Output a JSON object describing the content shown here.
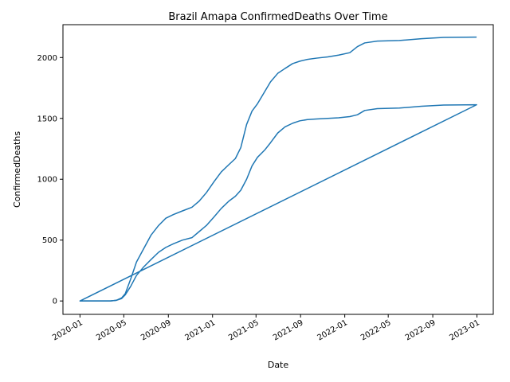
{
  "chart_data": {
    "type": "line",
    "title": "Brazil Amapa ConfirmedDeaths Over Time",
    "xlabel": "Date",
    "ylabel": "ConfirmedDeaths",
    "x_ticks": [
      "2020-01",
      "2020-05",
      "2020-09",
      "2021-01",
      "2021-05",
      "2021-09",
      "2022-01",
      "2022-05",
      "2022-09",
      "2023-01"
    ],
    "y_ticks": [
      0,
      500,
      1000,
      1500,
      2000
    ],
    "xlim": [
      "2019-11-15",
      "2023-02-15"
    ],
    "ylim": [
      -110,
      2270
    ],
    "grid": false,
    "legend": "none",
    "color": "#1f77b4",
    "series": [
      {
        "x": [
          "2020-01-01",
          "2020-03-25",
          "2020-04-10",
          "2020-04-25",
          "2020-05-05",
          "2020-05-20",
          "2020-06-05",
          "2020-06-25",
          "2020-07-15",
          "2020-08-05",
          "2020-08-25",
          "2020-09-15",
          "2020-10-10",
          "2020-11-05",
          "2020-11-25",
          "2020-12-15",
          "2021-01-05",
          "2021-01-25",
          "2021-02-15",
          "2021-03-05",
          "2021-03-20",
          "2021-04-05",
          "2021-04-20",
          "2021-05-05",
          "2021-05-25",
          "2021-06-10",
          "2021-06-30",
          "2021-07-20",
          "2021-08-10",
          "2021-08-30",
          "2021-09-20",
          "2021-10-15",
          "2021-11-15",
          "2021-12-15",
          "2022-01-15",
          "2022-02-05",
          "2022-02-25",
          "2022-04-01",
          "2022-06-01",
          "2022-08-01",
          "2022-10-01",
          "2022-12-31",
          "2020-01-01",
          "2022-12-31"
        ],
        "y": [
          0,
          0,
          5,
          20,
          50,
          120,
          210,
          280,
          340,
          400,
          440,
          470,
          500,
          520,
          570,
          620,
          690,
          760,
          820,
          860,
          910,
          1000,
          1110,
          1180,
          1240,
          1300,
          1380,
          1430,
          1460,
          1480,
          1490,
          1495,
          1500,
          1505,
          1515,
          1530,
          1565,
          1580,
          1585,
          1600,
          1610,
          1612,
          0,
          1612
        ]
      },
      {
        "x": [
          "2020-01-01",
          "2020-03-25",
          "2020-04-10",
          "2020-04-25",
          "2020-05-05",
          "2020-05-20",
          "2020-06-05",
          "2020-06-25",
          "2020-07-15",
          "2020-08-05",
          "2020-08-25",
          "2020-09-15",
          "2020-10-10",
          "2020-11-05",
          "2020-11-25",
          "2020-12-15",
          "2021-01-05",
          "2021-01-25",
          "2021-02-15",
          "2021-03-05",
          "2021-03-20",
          "2021-04-05",
          "2021-04-20",
          "2021-05-05",
          "2021-05-25",
          "2021-06-10",
          "2021-06-30",
          "2021-07-20",
          "2021-08-10",
          "2021-08-30",
          "2021-09-20",
          "2021-10-15",
          "2021-11-15",
          "2021-12-15",
          "2022-01-15",
          "2022-02-05",
          "2022-02-25",
          "2022-04-01",
          "2022-06-01",
          "2022-08-01",
          "2022-10-01",
          "2022-12-31"
        ],
        "y": [
          0,
          0,
          5,
          25,
          60,
          180,
          320,
          430,
          540,
          620,
          680,
          710,
          740,
          770,
          820,
          890,
          980,
          1060,
          1120,
          1170,
          1260,
          1450,
          1560,
          1620,
          1720,
          1800,
          1870,
          1910,
          1950,
          1970,
          1985,
          1995,
          2005,
          2020,
          2040,
          2090,
          2120,
          2135,
          2140,
          2155,
          2165,
          2168
        ]
      }
    ]
  }
}
